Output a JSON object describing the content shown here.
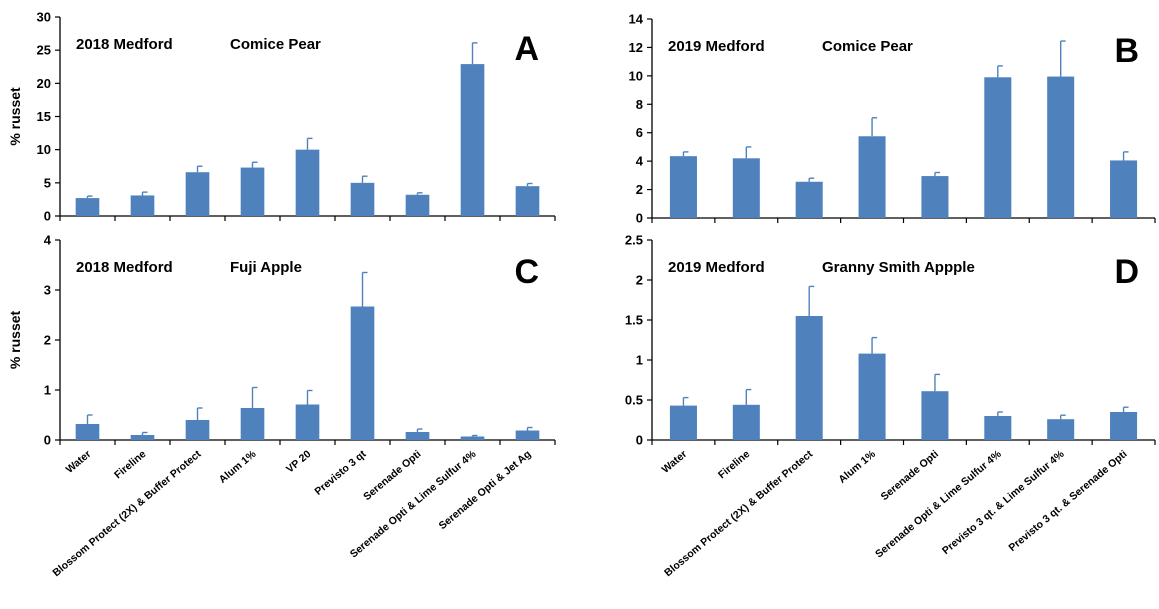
{
  "colors": {
    "bar": "#4f81bd",
    "axis": "#000000",
    "background": "#ffffff"
  },
  "chart_data": [
    {
      "panel": "A",
      "type": "bar",
      "title": "2018 Medford",
      "subtitle": "Comice Pear",
      "ylabel": "% russet",
      "ylim": [
        0,
        30
      ],
      "yticks": [
        0,
        5,
        10,
        15,
        20,
        25,
        30
      ],
      "ytick_labels": [
        "0",
        "5",
        "10",
        "15",
        "20",
        "25",
        "30"
      ],
      "categories": [
        "Water",
        "Fireline",
        "Blossom Protect (2X) & Buffer Protect",
        "Alum 1%",
        "VP 20",
        "Previsto 3 qt",
        "Serenade Opti",
        "Serenade Opti & Lime Sulfur 4%",
        "Serenade Opti & Jet Ag"
      ],
      "show_category_labels": false,
      "values": [
        2.7,
        3.1,
        6.6,
        7.3,
        10.0,
        5.0,
        3.2,
        22.9,
        4.5
      ],
      "errors": [
        0.3,
        0.5,
        0.9,
        0.8,
        1.7,
        1.0,
        0.3,
        3.2,
        0.4
      ],
      "grid": false
    },
    {
      "panel": "B",
      "type": "bar",
      "title": "2019 Medford",
      "subtitle": "Comice Pear",
      "ylabel": "",
      "ylim": [
        0,
        14
      ],
      "yticks": [
        0,
        2,
        4,
        6,
        8,
        10,
        12,
        14
      ],
      "ytick_labels": [
        "0",
        "2",
        "4",
        "6",
        "8",
        "10",
        "12",
        "14"
      ],
      "categories": [
        "Water",
        "Fireline",
        "Blossom Protect (2X) & Buffer Protect",
        "Alum 1%",
        "Serenade Opti",
        "Serenade Opti & Lime Sulfur 4%",
        "Previsto 3 qt. & Lime Sulfur 4%",
        "Previsto 3 qt. & Serenade Opti"
      ],
      "show_category_labels": false,
      "values": [
        4.35,
        4.2,
        2.55,
        5.75,
        2.95,
        9.9,
        9.95,
        4.05
      ],
      "errors": [
        0.3,
        0.8,
        0.25,
        1.3,
        0.25,
        0.8,
        2.5,
        0.6
      ],
      "grid": false
    },
    {
      "panel": "C",
      "type": "bar",
      "title": "2018 Medford",
      "subtitle": "Fuji Apple",
      "ylabel": "% russet",
      "ylim": [
        0,
        4
      ],
      "yticks": [
        0,
        1,
        2,
        3,
        4
      ],
      "ytick_labels": [
        "0",
        "1",
        "2",
        "3",
        "4"
      ],
      "categories": [
        "Water",
        "Fireline",
        "Blossom Protect (2X) & Buffer Protect",
        "Alum 1%",
        "VP 20",
        "Previsto 3 qt",
        "Serenade Opti",
        "Serenade Opti & Lime Sulfur 4%",
        "Serenade Opti & Jet Ag"
      ],
      "show_category_labels": true,
      "values": [
        0.32,
        0.1,
        0.4,
        0.64,
        0.71,
        2.67,
        0.16,
        0.07,
        0.19
      ],
      "errors": [
        0.18,
        0.05,
        0.24,
        0.41,
        0.28,
        0.68,
        0.06,
        0.02,
        0.06
      ],
      "grid": false
    },
    {
      "panel": "D",
      "type": "bar",
      "title": "2019 Medford",
      "subtitle": "Granny Smith Appple",
      "ylabel": "",
      "ylim": [
        0,
        2.5
      ],
      "yticks": [
        0,
        0.5,
        1,
        1.5,
        2,
        2.5
      ],
      "ytick_labels": [
        "0",
        "0.5",
        "1",
        "1.5",
        "2",
        "2.5"
      ],
      "categories": [
        "Water",
        "Fireline",
        "Blossom Protect (2X) & Buffer Protect",
        "Alum 1%",
        "Serenade Opti",
        "Serenade Opti & Lime Sulfur 4%",
        "Previsto 3 qt. & Lime Sulfur 4%",
        "Previsto 3 qt. & Serenade Opti"
      ],
      "show_category_labels": true,
      "values": [
        0.43,
        0.44,
        1.55,
        1.08,
        0.61,
        0.3,
        0.26,
        0.35
      ],
      "errors": [
        0.1,
        0.19,
        0.37,
        0.2,
        0.21,
        0.05,
        0.05,
        0.06
      ],
      "grid": false
    }
  ]
}
